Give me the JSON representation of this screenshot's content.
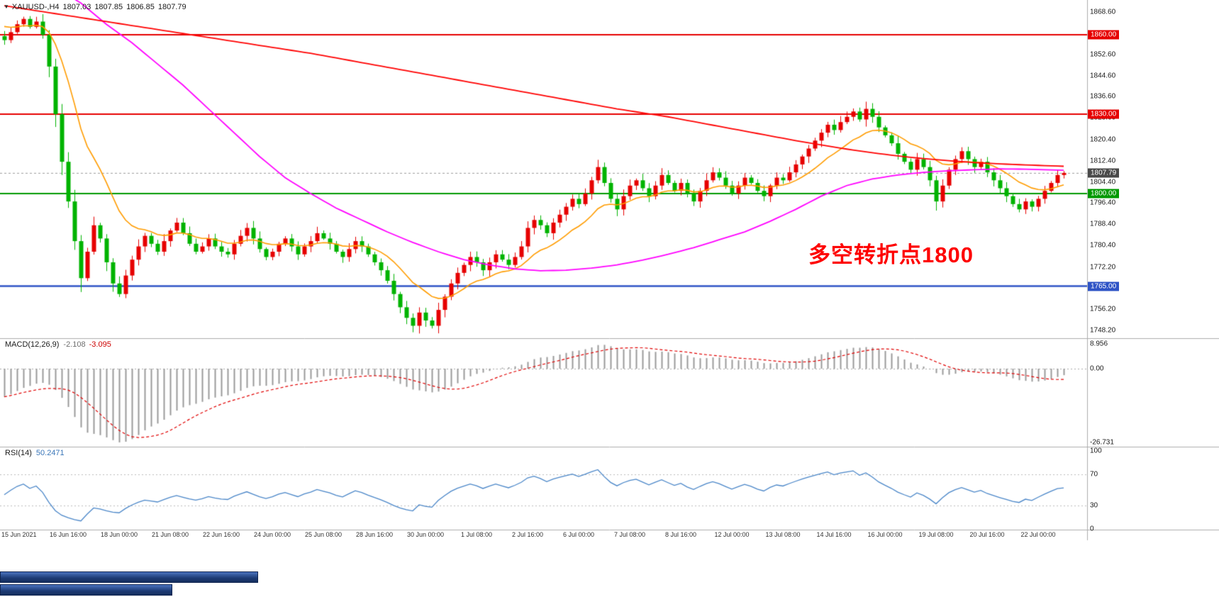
{
  "header": {
    "symbol_period": "XAUUSD-,H4",
    "open": "1807.03",
    "high": "1807.85",
    "low": "1806.85",
    "close": "1807.79"
  },
  "chart_data": {
    "type": "candlestick",
    "symbol": "XAUUSD-",
    "timeframe": "H4",
    "colors": {
      "up": "#e60000",
      "down": "#00b300",
      "ma_fast": "#ff9c00",
      "ma_mid": "#ff00ff",
      "ma_slow": "#ff0000",
      "macd_hist": "#9b9b9b",
      "macd_signal": "#e00000",
      "rsi_line": "#4a86c8",
      "separator": "#adadad",
      "current_line": "#999999"
    },
    "price_axis": {
      "top": 1873.16,
      "bottom": 1745.3,
      "ticks": [
        {
          "v": 1868.6,
          "label": "1868.60"
        },
        {
          "v": 1852.6,
          "label": "1852.60"
        },
        {
          "v": 1844.6,
          "label": "1844.60"
        },
        {
          "v": 1836.6,
          "label": "1836.60"
        },
        {
          "v": 1828.6,
          "label": "1828.60"
        },
        {
          "v": 1820.4,
          "label": "1820.40"
        },
        {
          "v": 1812.4,
          "label": "1812.40"
        },
        {
          "v": 1804.4,
          "label": "1804.40"
        },
        {
          "v": 1796.4,
          "label": "1796.40"
        },
        {
          "v": 1788.4,
          "label": "1788.40"
        },
        {
          "v": 1780.4,
          "label": "1780.40"
        },
        {
          "v": 1772.2,
          "label": "1772.20"
        },
        {
          "v": 1764.2,
          "label": "1764.20"
        },
        {
          "v": 1756.2,
          "label": "1756.20"
        },
        {
          "v": 1748.2,
          "label": "1748.20"
        }
      ]
    },
    "hlines": [
      {
        "value": 1860.0,
        "label": "1860.00",
        "color": "#e60000",
        "width": 2
      },
      {
        "value": 1830.0,
        "label": "1830.00",
        "color": "#e60000",
        "width": 2
      },
      {
        "value": 1800.0,
        "label": "1800.00",
        "color": "#009900",
        "width": 2
      },
      {
        "value": 1765.0,
        "label": "1765.00",
        "color": "#2f54c6",
        "width": 2.5
      }
    ],
    "current_price": {
      "value": 1807.79,
      "label": "1807.79",
      "badge_color": "#4a4a4a"
    },
    "x_axis": {
      "first_bar": 2,
      "bar_step": 8,
      "labels": [
        "15 Jun 2021",
        "16 Jun 16:00",
        "18 Jun 00:00",
        "21 Jun 08:00",
        "22 Jun 16:00",
        "24 Jun 00:00",
        "25 Jun 08:00",
        "28 Jun 16:00",
        "30 Jun 00:00",
        "1 Jul 08:00",
        "2 Jul 16:00",
        "6 Jul 00:00",
        "7 Jul 08:00",
        "8 Jul 16:00",
        "12 Jul 00:00",
        "13 Jul 08:00",
        "14 Jul 16:00",
        "16 Jul 00:00",
        "19 Jul 08:00",
        "20 Jul 16:00",
        "22 Jul 00:00"
      ]
    },
    "candles": {
      "closes": [
        1858,
        1861,
        1864,
        1866,
        1863,
        1865,
        1860,
        1848,
        1830,
        1812,
        1797,
        1782,
        1768,
        1778,
        1788,
        1783,
        1774,
        1766,
        1762,
        1769,
        1775,
        1780,
        1784,
        1781,
        1778,
        1782,
        1786,
        1789,
        1785,
        1781,
        1778,
        1780,
        1783,
        1780,
        1778,
        1777,
        1781,
        1784,
        1787,
        1783,
        1779,
        1776,
        1778,
        1781,
        1783,
        1780,
        1777,
        1780,
        1782,
        1785,
        1783,
        1781,
        1778,
        1776,
        1779,
        1782,
        1780,
        1777,
        1774,
        1771,
        1767,
        1762,
        1757,
        1753,
        1750,
        1755,
        1752,
        1750,
        1756,
        1761,
        1766,
        1770,
        1773,
        1776,
        1774,
        1771,
        1774,
        1777,
        1775,
        1773,
        1776,
        1780,
        1787,
        1790,
        1788,
        1785,
        1789,
        1792,
        1795,
        1798,
        1796,
        1800,
        1805,
        1810,
        1804,
        1798,
        1794,
        1799,
        1803,
        1805,
        1802,
        1799,
        1803,
        1807,
        1804,
        1801,
        1804,
        1800,
        1797,
        1801,
        1805,
        1808,
        1806,
        1803,
        1800,
        1803,
        1806,
        1804,
        1801,
        1799,
        1803,
        1806,
        1805,
        1808,
        1811,
        1814,
        1817,
        1820,
        1823,
        1826,
        1824,
        1827,
        1829,
        1831,
        1828,
        1832,
        1829,
        1825,
        1822,
        1819,
        1815,
        1812,
        1809,
        1813,
        1810,
        1805,
        1797,
        1803,
        1809,
        1813,
        1816,
        1813,
        1810,
        1812,
        1808,
        1805,
        1802,
        1799,
        1796,
        1794,
        1797,
        1795,
        1798,
        1801,
        1804,
        1807,
        1807.79
      ]
    },
    "moving_averages": {
      "fast_period": 13,
      "fast_seed": 1864,
      "mid_keypoints": [
        [
          0,
          1886
        ],
        [
          8,
          1878
        ],
        [
          12,
          1872
        ],
        [
          16,
          1864
        ],
        [
          20,
          1857
        ],
        [
          24,
          1849
        ],
        [
          28,
          1841
        ],
        [
          32,
          1832
        ],
        [
          36,
          1823
        ],
        [
          40,
          1814
        ],
        [
          44,
          1806
        ],
        [
          48,
          1800
        ],
        [
          52,
          1794.5
        ],
        [
          56,
          1790
        ],
        [
          60,
          1785.5
        ],
        [
          64,
          1781.5
        ],
        [
          68,
          1778
        ],
        [
          72,
          1775
        ],
        [
          76,
          1773
        ],
        [
          80,
          1771.5
        ],
        [
          84,
          1770.8
        ],
        [
          88,
          1771
        ],
        [
          92,
          1771.8
        ],
        [
          96,
          1773
        ],
        [
          100,
          1774.8
        ],
        [
          104,
          1777
        ],
        [
          108,
          1779.5
        ],
        [
          112,
          1782.5
        ],
        [
          116,
          1785.5
        ],
        [
          120,
          1789.5
        ],
        [
          124,
          1794
        ],
        [
          128,
          1799
        ],
        [
          132,
          1803
        ],
        [
          136,
          1805.5
        ],
        [
          140,
          1807
        ],
        [
          144,
          1808
        ],
        [
          148,
          1808.6
        ],
        [
          152,
          1809
        ],
        [
          156,
          1809.3
        ],
        [
          160,
          1809.2
        ],
        [
          166,
          1808.8
        ]
      ],
      "slow_keypoints": [
        [
          0,
          1871
        ],
        [
          8,
          1868
        ],
        [
          16,
          1865
        ],
        [
          24,
          1862
        ],
        [
          32,
          1859
        ],
        [
          40,
          1856
        ],
        [
          48,
          1853
        ],
        [
          56,
          1849.5
        ],
        [
          64,
          1846
        ],
        [
          72,
          1842.5
        ],
        [
          80,
          1839
        ],
        [
          88,
          1835.5
        ],
        [
          96,
          1832
        ],
        [
          100,
          1830.5
        ],
        [
          104,
          1829
        ],
        [
          108,
          1827.2
        ],
        [
          112,
          1825.4
        ],
        [
          116,
          1823.6
        ],
        [
          120,
          1821.8
        ],
        [
          124,
          1820
        ],
        [
          128,
          1818.4
        ],
        [
          132,
          1816.8
        ],
        [
          136,
          1815.4
        ],
        [
          140,
          1814.2
        ],
        [
          144,
          1813.2
        ],
        [
          148,
          1812.4
        ],
        [
          152,
          1811.7
        ],
        [
          156,
          1811.2
        ],
        [
          160,
          1810.8
        ],
        [
          166,
          1810.3
        ]
      ]
    },
    "macd": {
      "label": "MACD(12,26,9)",
      "value_main": "-2.108",
      "value_signal": "-3.095",
      "fast": 12,
      "slow": 26,
      "signal_period": 9,
      "range": [
        -28.16,
        11.0
      ],
      "axis": [
        {
          "v": 8.956,
          "label": "8.956"
        },
        {
          "v": 0,
          "label": "0.00"
        },
        {
          "v": -26.731,
          "label": "-26.731"
        }
      ]
    },
    "rsi": {
      "label": "RSI(14)",
      "value": "50.2471",
      "period": 14,
      "levels": [
        70,
        30
      ],
      "range": [
        -0.9,
        105.5
      ],
      "axis": [
        {
          "v": 100,
          "label": "100"
        },
        {
          "v": 70,
          "label": "70"
        },
        {
          "v": 30,
          "label": "30"
        },
        {
          "v": 0,
          "label": "0"
        }
      ]
    },
    "annotation": {
      "text": "多空转折点1800",
      "color": "#fe0000"
    }
  }
}
